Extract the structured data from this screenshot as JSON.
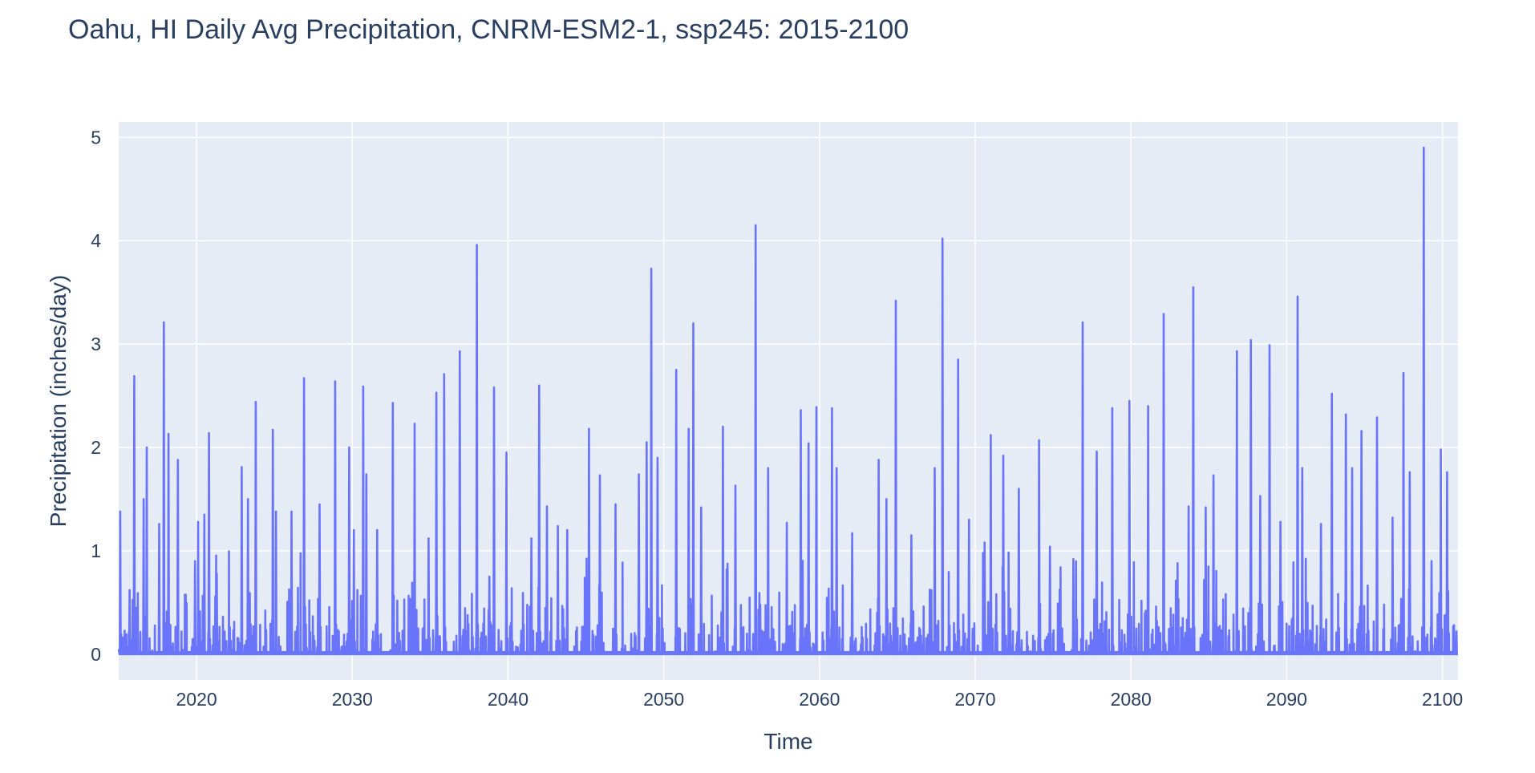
{
  "chart_data": {
    "type": "line",
    "title": "Oahu, HI Daily Avg Precipitation, CNRM-ESM2-1, ssp245: 2015-2100",
    "xlabel": "Time",
    "ylabel": "Precipitation (inches/day)",
    "xlim": [
      2015.0,
      2101.0
    ],
    "ylim": [
      -0.25,
      5.15
    ],
    "x_ticks": [
      "2020",
      "2030",
      "2040",
      "2050",
      "2060",
      "2070",
      "2080",
      "2090",
      "2100"
    ],
    "y_ticks": [
      "0",
      "1",
      "2",
      "3",
      "4",
      "5"
    ],
    "grid": true,
    "background": "#e5ecf6",
    "series": [
      {
        "color": "#636efa",
        "peaks": [
          {
            "x": 2015.1,
            "y": 1.38
          },
          {
            "x": 2015.7,
            "y": 0.62
          },
          {
            "x": 2016.0,
            "y": 2.69
          },
          {
            "x": 2016.6,
            "y": 1.5
          },
          {
            "x": 2016.8,
            "y": 2.0
          },
          {
            "x": 2017.6,
            "y": 1.26
          },
          {
            "x": 2017.9,
            "y": 3.21
          },
          {
            "x": 2018.2,
            "y": 2.13
          },
          {
            "x": 2018.8,
            "y": 1.88
          },
          {
            "x": 2019.9,
            "y": 0.9
          },
          {
            "x": 2020.1,
            "y": 1.28
          },
          {
            "x": 2020.5,
            "y": 1.35
          },
          {
            "x": 2020.8,
            "y": 2.14
          },
          {
            "x": 2021.3,
            "y": 0.78
          },
          {
            "x": 2022.9,
            "y": 1.81
          },
          {
            "x": 2023.3,
            "y": 1.5
          },
          {
            "x": 2023.8,
            "y": 2.44
          },
          {
            "x": 2024.9,
            "y": 2.17
          },
          {
            "x": 2025.1,
            "y": 1.38
          },
          {
            "x": 2026.1,
            "y": 1.38
          },
          {
            "x": 2026.9,
            "y": 2.67
          },
          {
            "x": 2027.9,
            "y": 1.45
          },
          {
            "x": 2028.9,
            "y": 2.64
          },
          {
            "x": 2029.8,
            "y": 2.0
          },
          {
            "x": 2030.1,
            "y": 1.2
          },
          {
            "x": 2030.7,
            "y": 2.59
          },
          {
            "x": 2030.9,
            "y": 1.74
          },
          {
            "x": 2031.6,
            "y": 1.2
          },
          {
            "x": 2032.6,
            "y": 2.43
          },
          {
            "x": 2034.0,
            "y": 2.23
          },
          {
            "x": 2034.9,
            "y": 1.12
          },
          {
            "x": 2035.4,
            "y": 2.53
          },
          {
            "x": 2035.9,
            "y": 2.71
          },
          {
            "x": 2036.9,
            "y": 2.93
          },
          {
            "x": 2038.0,
            "y": 3.96
          },
          {
            "x": 2038.8,
            "y": 0.75
          },
          {
            "x": 2039.1,
            "y": 2.58
          },
          {
            "x": 2039.9,
            "y": 1.95
          },
          {
            "x": 2041.5,
            "y": 1.12
          },
          {
            "x": 2042.0,
            "y": 2.6
          },
          {
            "x": 2042.5,
            "y": 1.43
          },
          {
            "x": 2043.2,
            "y": 1.24
          },
          {
            "x": 2043.8,
            "y": 1.2
          },
          {
            "x": 2045.2,
            "y": 2.18
          },
          {
            "x": 2045.9,
            "y": 1.73
          },
          {
            "x": 2046.9,
            "y": 1.45
          },
          {
            "x": 2048.4,
            "y": 1.74
          },
          {
            "x": 2048.9,
            "y": 2.05
          },
          {
            "x": 2049.2,
            "y": 3.73
          },
          {
            "x": 2049.6,
            "y": 1.9
          },
          {
            "x": 2050.8,
            "y": 2.75
          },
          {
            "x": 2051.6,
            "y": 2.18
          },
          {
            "x": 2051.9,
            "y": 3.2
          },
          {
            "x": 2052.4,
            "y": 1.42
          },
          {
            "x": 2053.8,
            "y": 2.2
          },
          {
            "x": 2054.6,
            "y": 1.63
          },
          {
            "x": 2055.9,
            "y": 4.15
          },
          {
            "x": 2056.7,
            "y": 1.8
          },
          {
            "x": 2057.9,
            "y": 1.27
          },
          {
            "x": 2058.8,
            "y": 2.36
          },
          {
            "x": 2059.3,
            "y": 2.04
          },
          {
            "x": 2059.8,
            "y": 2.39
          },
          {
            "x": 2060.8,
            "y": 2.38
          },
          {
            "x": 2061.1,
            "y": 1.8
          },
          {
            "x": 2062.1,
            "y": 1.17
          },
          {
            "x": 2063.8,
            "y": 1.88
          },
          {
            "x": 2064.3,
            "y": 1.5
          },
          {
            "x": 2064.9,
            "y": 3.42
          },
          {
            "x": 2065.9,
            "y": 1.15
          },
          {
            "x": 2067.4,
            "y": 1.8
          },
          {
            "x": 2067.9,
            "y": 4.02
          },
          {
            "x": 2068.9,
            "y": 2.85
          },
          {
            "x": 2069.6,
            "y": 1.3
          },
          {
            "x": 2070.6,
            "y": 1.08
          },
          {
            "x": 2071.0,
            "y": 2.12
          },
          {
            "x": 2071.8,
            "y": 1.92
          },
          {
            "x": 2072.8,
            "y": 1.6
          },
          {
            "x": 2074.1,
            "y": 2.07
          },
          {
            "x": 2074.8,
            "y": 1.04
          },
          {
            "x": 2076.3,
            "y": 0.92
          },
          {
            "x": 2076.9,
            "y": 3.21
          },
          {
            "x": 2077.8,
            "y": 1.96
          },
          {
            "x": 2078.8,
            "y": 2.38
          },
          {
            "x": 2079.9,
            "y": 2.45
          },
          {
            "x": 2081.1,
            "y": 2.4
          },
          {
            "x": 2082.1,
            "y": 3.29
          },
          {
            "x": 2083.7,
            "y": 1.43
          },
          {
            "x": 2084.0,
            "y": 3.55
          },
          {
            "x": 2084.8,
            "y": 1.42
          },
          {
            "x": 2085.3,
            "y": 1.73
          },
          {
            "x": 2086.8,
            "y": 2.93
          },
          {
            "x": 2087.7,
            "y": 3.04
          },
          {
            "x": 2088.3,
            "y": 1.53
          },
          {
            "x": 2088.9,
            "y": 2.99
          },
          {
            "x": 2089.6,
            "y": 1.28
          },
          {
            "x": 2090.7,
            "y": 3.46
          },
          {
            "x": 2091.0,
            "y": 1.8
          },
          {
            "x": 2092.2,
            "y": 1.26
          },
          {
            "x": 2092.9,
            "y": 2.52
          },
          {
            "x": 2093.8,
            "y": 2.32
          },
          {
            "x": 2094.2,
            "y": 1.8
          },
          {
            "x": 2094.8,
            "y": 2.16
          },
          {
            "x": 2095.8,
            "y": 2.29
          },
          {
            "x": 2096.8,
            "y": 1.32
          },
          {
            "x": 2097.5,
            "y": 2.72
          },
          {
            "x": 2097.9,
            "y": 1.76
          },
          {
            "x": 2098.8,
            "y": 4.9
          },
          {
            "x": 2099.3,
            "y": 0.9
          },
          {
            "x": 2099.9,
            "y": 1.98
          },
          {
            "x": 2100.3,
            "y": 1.76
          },
          {
            "x": 2100.9,
            "y": 0.22
          }
        ]
      }
    ]
  }
}
